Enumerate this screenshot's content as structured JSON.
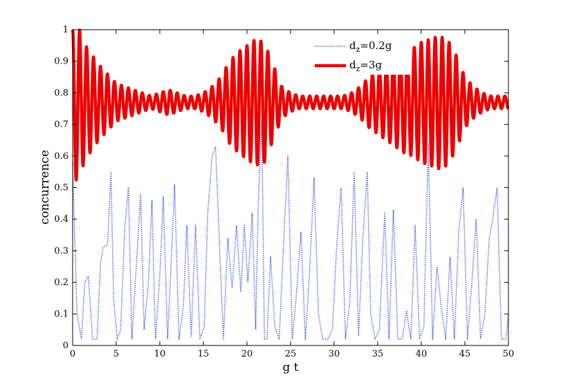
{
  "chart_data": {
    "type": "line",
    "xlabel": "g t",
    "ylabel": "concurrence",
    "xlim": [
      0,
      50
    ],
    "ylim": [
      0,
      1
    ],
    "x_ticks": [
      0,
      5,
      10,
      15,
      20,
      25,
      30,
      35,
      40,
      45,
      50
    ],
    "y_ticks": [
      0,
      0.1,
      0.2,
      0.3,
      0.4,
      0.5,
      0.6,
      0.7,
      0.8,
      0.9,
      1
    ],
    "legend": {
      "placement": "top-right",
      "entries": [
        {
          "base": "d",
          "sub": "z",
          "rest": "=0.2g"
        },
        {
          "base": "d",
          "sub": "z",
          "rest": "=3g"
        }
      ]
    },
    "grid": false,
    "series": [
      {
        "name": "dz=0.2g",
        "color": "#3355dd",
        "style": "dotted",
        "x": [
          0,
          0.5,
          1,
          1.4,
          1.8,
          2.3,
          2.8,
          3.2,
          3.5,
          4,
          4.4,
          4.7,
          5.1,
          5.5,
          6,
          6.4,
          6.8,
          7.3,
          7.8,
          8.2,
          8.7,
          9.1,
          9.5,
          10,
          10.4,
          10.9,
          11.3,
          11.7,
          12.2,
          12.7,
          13.1,
          13.6,
          14.1,
          14.6,
          15.1,
          15.5,
          16,
          16.4,
          16.8,
          17.3,
          17.8,
          18.3,
          18.8,
          19.3,
          19.7,
          20.1,
          20.6,
          21,
          21.3,
          21.7,
          22,
          22.3,
          22.7,
          23.2,
          23.7,
          24.2,
          24.7,
          25.2,
          25.7,
          26.2,
          26.7,
          27.2,
          27.7,
          28.2,
          28.7,
          29.3,
          29.8,
          30.3,
          30.8,
          31.3,
          31.8,
          32.3,
          32.8,
          33.3,
          33.8,
          34.2,
          34.7,
          35.2,
          35.8,
          36.3,
          36.8,
          37.3,
          37.8,
          38.3,
          38.8,
          39.3,
          39.8,
          40.3,
          40.8,
          41.3,
          41.8,
          42.3,
          42.8,
          43.3,
          43.8,
          44.3,
          44.8,
          45.3,
          45.8,
          46.3,
          46.8,
          47.3,
          47.8,
          48.2,
          48.7,
          49.2,
          49.7,
          50
        ],
        "values": [
          0.58,
          0.1,
          0.02,
          0.2,
          0.22,
          0.02,
          0.02,
          0.26,
          0.31,
          0.32,
          0.55,
          0.15,
          0.02,
          0.05,
          0.38,
          0.5,
          0.02,
          0.25,
          0.48,
          0.05,
          0.2,
          0.46,
          0.02,
          0.22,
          0.47,
          0.02,
          0.26,
          0.51,
          0.02,
          0.12,
          0.38,
          0.03,
          0.38,
          0.02,
          0.06,
          0.42,
          0.6,
          0.63,
          0.35,
          0.02,
          0.34,
          0.18,
          0.38,
          0.17,
          0.38,
          0.2,
          0.42,
          0.05,
          0.45,
          0.72,
          0.02,
          0.02,
          0.28,
          0.06,
          0.02,
          0.32,
          0.6,
          0.02,
          0.17,
          0.36,
          0.02,
          0.24,
          0.53,
          0.1,
          0.02,
          0.02,
          0.05,
          0.32,
          0.5,
          0.02,
          0.14,
          0.55,
          0.03,
          0.34,
          0.55,
          0.1,
          0.02,
          0.05,
          0.42,
          0.02,
          0.43,
          0.02,
          0.02,
          0.11,
          0.02,
          0.38,
          0.02,
          0.06,
          0.64,
          0.02,
          0.25,
          0.12,
          0.02,
          0.28,
          0.02,
          0.36,
          0.5,
          0.02,
          0.2,
          0.4,
          0.02,
          0.1,
          0.34,
          0.4,
          0.5,
          0.02,
          0.02,
          0.1
        ]
      },
      {
        "name": "dz=3g",
        "color": "#ee0000",
        "style": "solid",
        "center": 0.77,
        "envelope_t": [
          0,
          0.5,
          1.5,
          3,
          5,
          7,
          9,
          10,
          11,
          12,
          13,
          14,
          15,
          16,
          17,
          18,
          19,
          20,
          21,
          22,
          23,
          24,
          25,
          26,
          27,
          28,
          29,
          30,
          31,
          32,
          33,
          34,
          35,
          36,
          37,
          38,
          39,
          40,
          41,
          42,
          43,
          44,
          45,
          46,
          47,
          48,
          49,
          50
        ],
        "envelope_amp": [
          0.23,
          0.25,
          0.18,
          0.12,
          0.06,
          0.04,
          0.02,
          0.03,
          0.04,
          0.03,
          0.02,
          0.02,
          0.03,
          0.05,
          0.08,
          0.13,
          0.16,
          0.18,
          0.2,
          0.19,
          0.12,
          0.05,
          0.03,
          0.02,
          0.02,
          0.02,
          0.02,
          0.02,
          0.02,
          0.03,
          0.05,
          0.08,
          0.1,
          0.12,
          0.14,
          0.16,
          0.17,
          0.19,
          0.2,
          0.21,
          0.2,
          0.15,
          0.08,
          0.05,
          0.03,
          0.02,
          0.02,
          0.02
        ],
        "oscillation_frequency": 1.25
      }
    ]
  }
}
